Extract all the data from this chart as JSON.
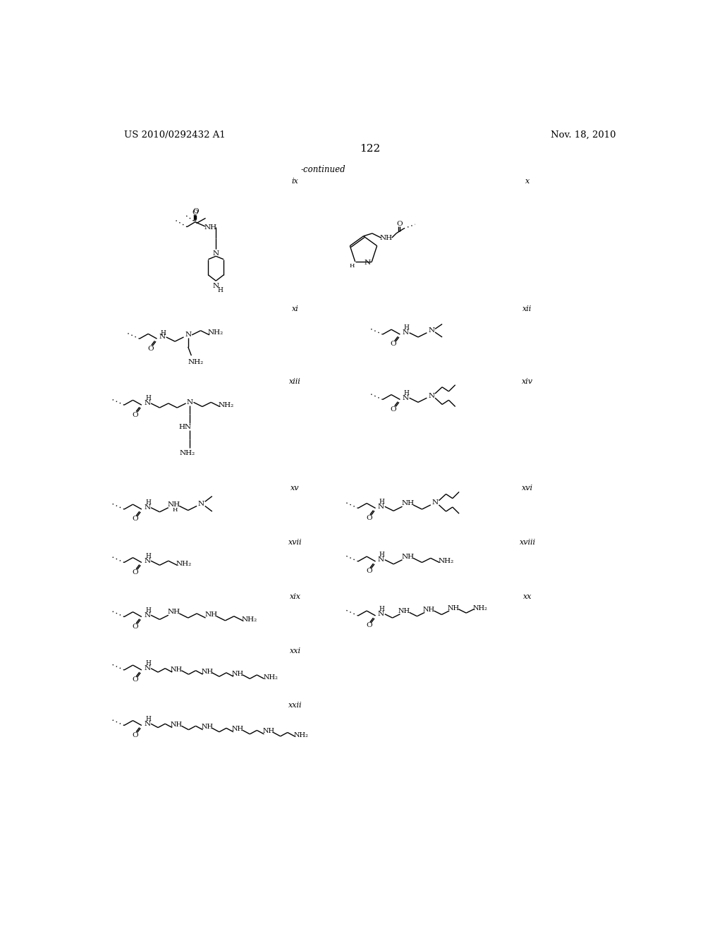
{
  "page_number": "122",
  "patent_number": "US 2010/0292432 A1",
  "patent_date": "Nov. 18, 2010",
  "continued_label": "-continued",
  "background_color": "#ffffff",
  "text_color": "#000000",
  "line_color": "#000000",
  "font_size_header": 10,
  "font_size_label": 8,
  "font_size_atom": 8,
  "font_size_page": 11,
  "structures": {
    "ix_label": "ix",
    "x_label": "x",
    "xi_label": "xi",
    "xii_label": "xii",
    "xiii_label": "xiii",
    "xiv_label": "xiv",
    "xv_label": "xv",
    "xvi_label": "xvi",
    "xvii_label": "xvii",
    "xviii_label": "xviii",
    "xix_label": "xix",
    "xx_label": "xx",
    "xxi_label": "xxi",
    "xxii_label": "xxii"
  }
}
